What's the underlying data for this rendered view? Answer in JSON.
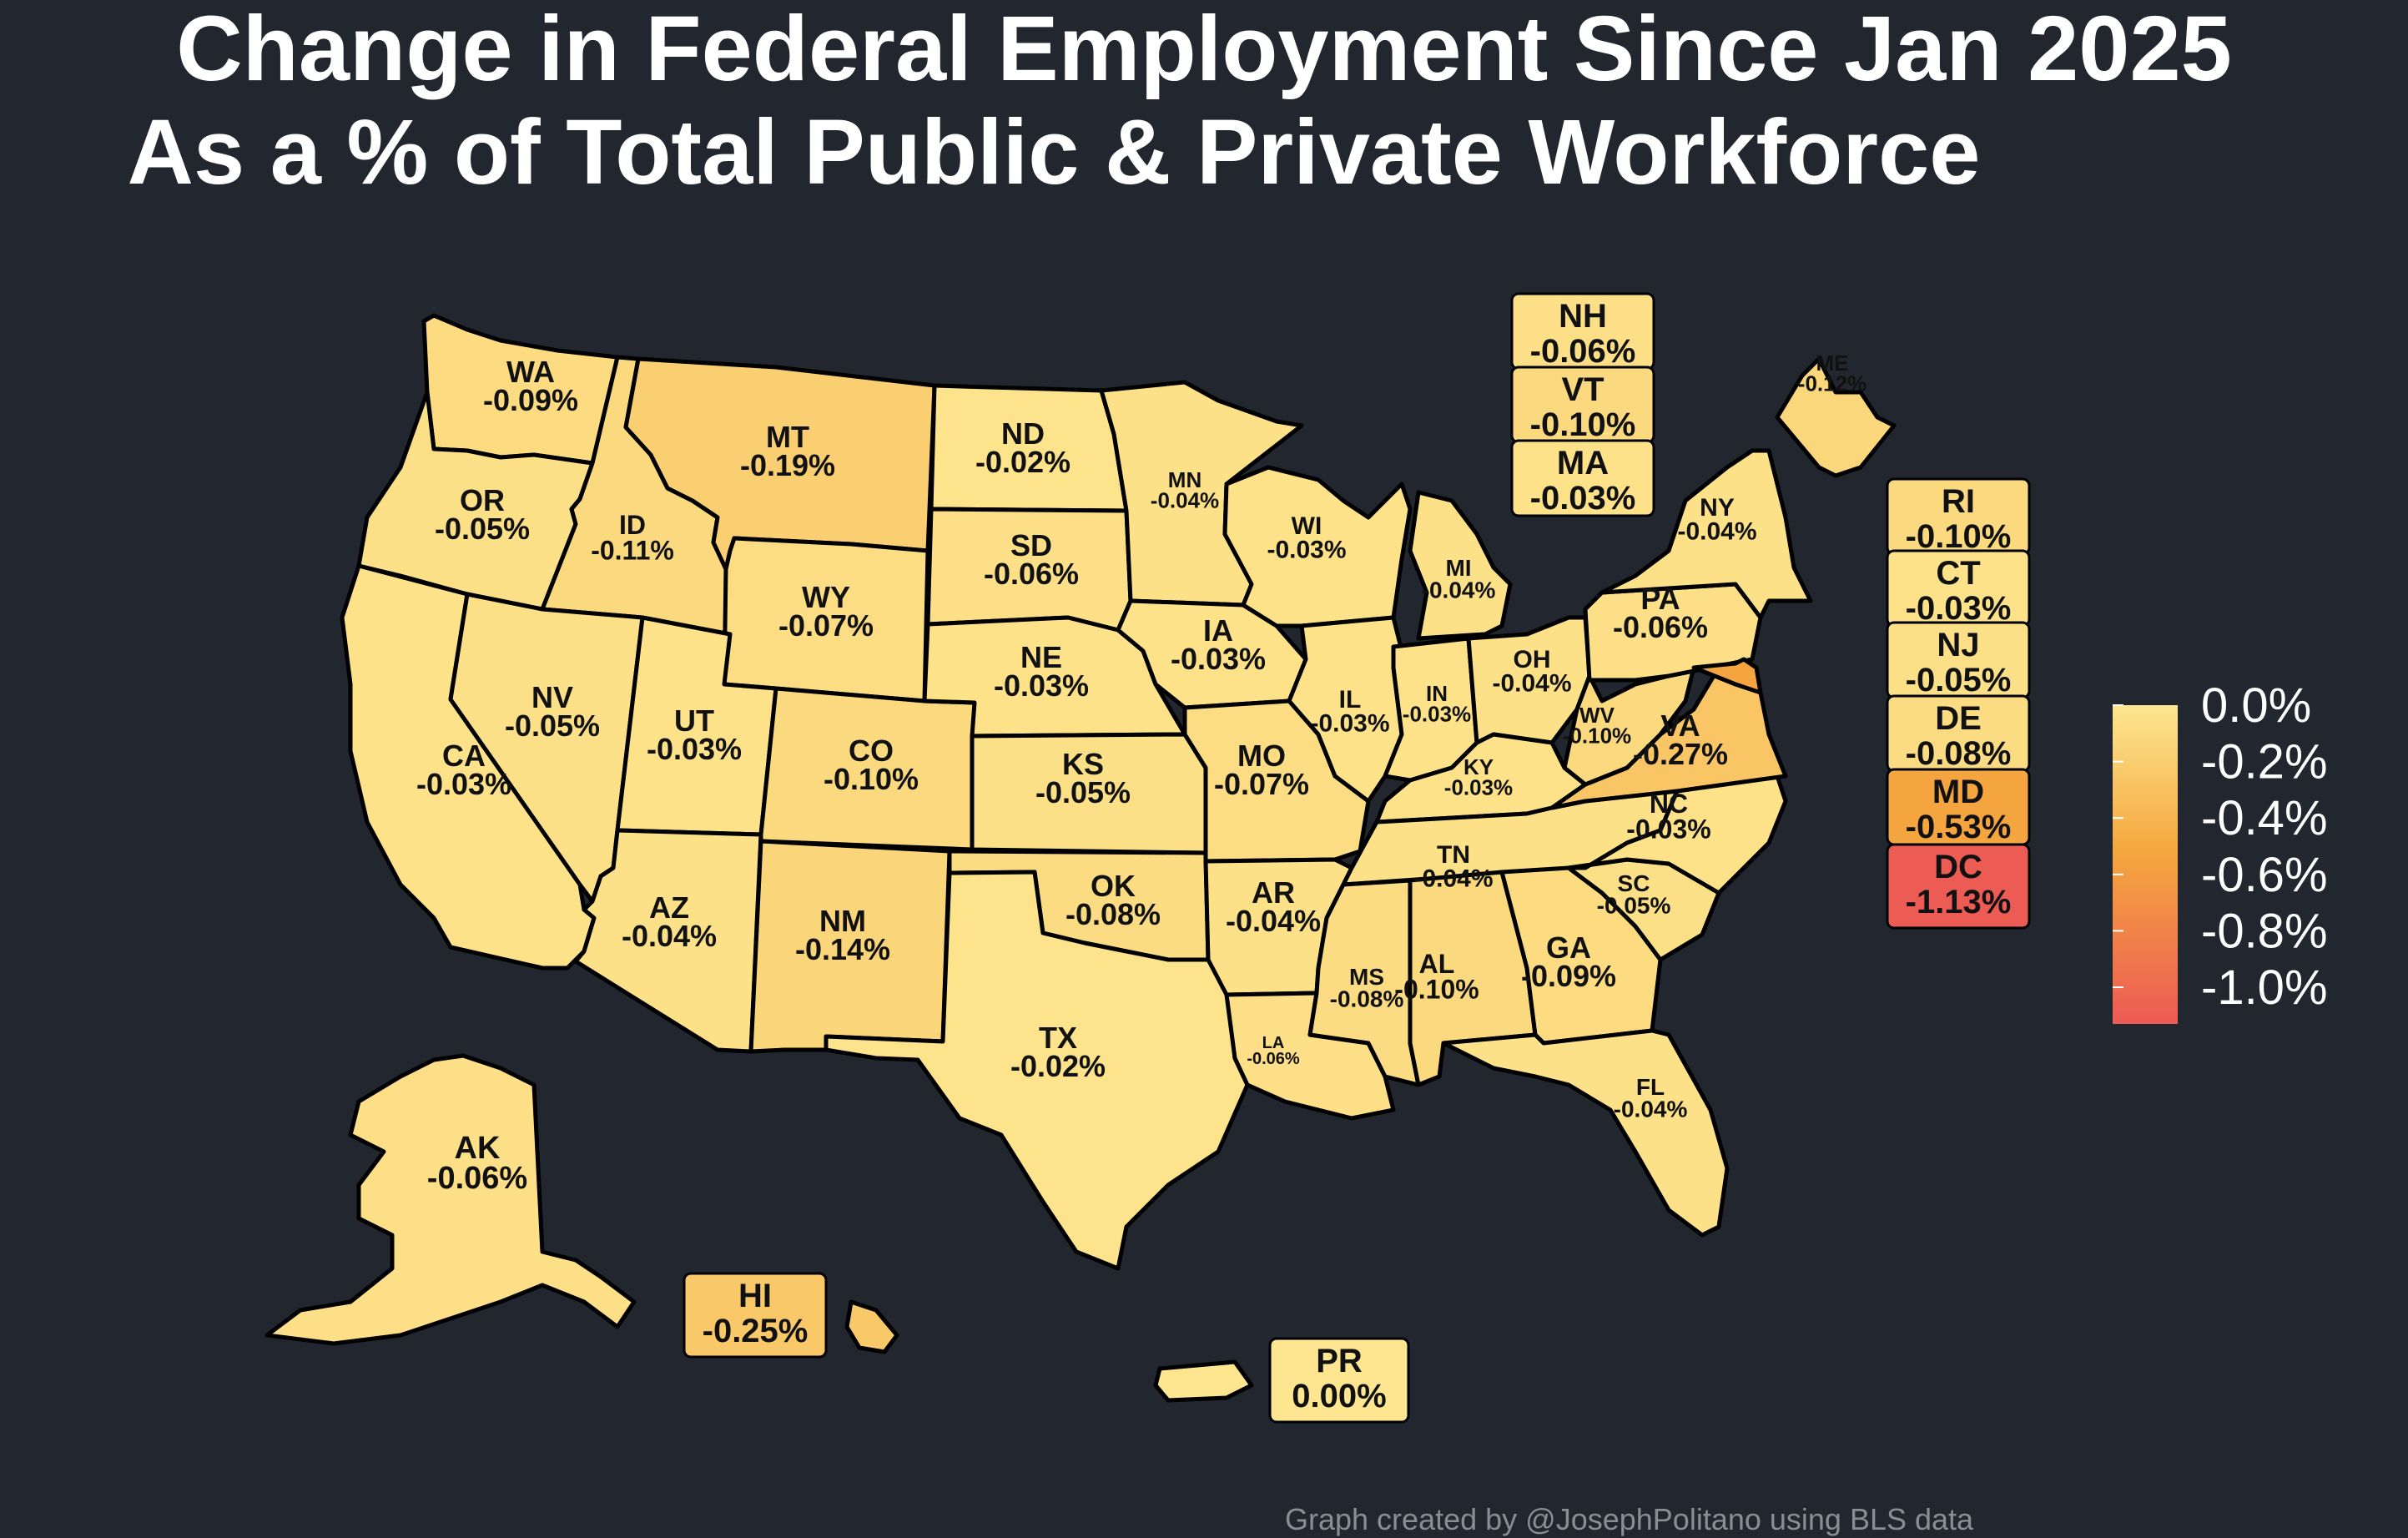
{
  "title": {
    "line1": "Change in Federal Employment Since Jan 2025",
    "line2": "As a % of Total Public & Private Workforce"
  },
  "credit": "Graph created by @JosephPolitano using BLS data",
  "colors": {
    "background": "#22262f",
    "scale_low": "#fde68f",
    "scale_mid": "#f5a83f",
    "scale_high": "#ec5b54"
  },
  "legend": {
    "labels": [
      "0.0%",
      "-0.2%",
      "-0.4%",
      "-0.6%",
      "-0.8%",
      "-1.0%"
    ],
    "values": [
      0.0,
      -0.2,
      -0.4,
      -0.6,
      -0.8,
      -1.0
    ]
  },
  "chart_data": {
    "type": "choropleth",
    "scale_range": [
      -1.13,
      0.0
    ],
    "states": [
      {
        "abbr": "WA",
        "label": "-0.09%",
        "value": -0.09
      },
      {
        "abbr": "OR",
        "label": "-0.05%",
        "value": -0.05
      },
      {
        "abbr": "CA",
        "label": "-0.03%",
        "value": -0.03
      },
      {
        "abbr": "ID",
        "label": "-0.11%",
        "value": -0.11
      },
      {
        "abbr": "NV",
        "label": "-0.05%",
        "value": -0.05
      },
      {
        "abbr": "MT",
        "label": "-0.19%",
        "value": -0.19
      },
      {
        "abbr": "WY",
        "label": "-0.07%",
        "value": -0.07
      },
      {
        "abbr": "UT",
        "label": "-0.03%",
        "value": -0.03
      },
      {
        "abbr": "AZ",
        "label": "-0.04%",
        "value": -0.04
      },
      {
        "abbr": "CO",
        "label": "-0.10%",
        "value": -0.1
      },
      {
        "abbr": "NM",
        "label": "-0.14%",
        "value": -0.14
      },
      {
        "abbr": "ND",
        "label": "-0.02%",
        "value": -0.02
      },
      {
        "abbr": "SD",
        "label": "-0.06%",
        "value": -0.06
      },
      {
        "abbr": "NE",
        "label": "-0.03%",
        "value": -0.03
      },
      {
        "abbr": "KS",
        "label": "-0.05%",
        "value": -0.05
      },
      {
        "abbr": "OK",
        "label": "-0.08%",
        "value": -0.08
      },
      {
        "abbr": "TX",
        "label": "-0.02%",
        "value": -0.02
      },
      {
        "abbr": "MN",
        "label": "-0.04%",
        "value": -0.04
      },
      {
        "abbr": "IA",
        "label": "-0.03%",
        "value": -0.03
      },
      {
        "abbr": "MO",
        "label": "-0.07%",
        "value": -0.07
      },
      {
        "abbr": "AR",
        "label": "-0.04%",
        "value": -0.04
      },
      {
        "abbr": "LA",
        "label": "-0.06%",
        "value": -0.06
      },
      {
        "abbr": "WI",
        "label": "-0.03%",
        "value": -0.03
      },
      {
        "abbr": "IL",
        "label": "-0.03%",
        "value": -0.03
      },
      {
        "abbr": "MI",
        "label": "-0.04%",
        "value": -0.04
      },
      {
        "abbr": "IN",
        "label": "-0.03%",
        "value": -0.03
      },
      {
        "abbr": "OH",
        "label": "-0.04%",
        "value": -0.04
      },
      {
        "abbr": "KY",
        "label": "-0.03%",
        "value": -0.03
      },
      {
        "abbr": "TN",
        "label": "-0.04%",
        "value": -0.04
      },
      {
        "abbr": "MS",
        "label": "-0.08%",
        "value": -0.08
      },
      {
        "abbr": "AL",
        "label": "-0.10%",
        "value": -0.1
      },
      {
        "abbr": "GA",
        "label": "-0.09%",
        "value": -0.09
      },
      {
        "abbr": "FL",
        "label": "-0.04%",
        "value": -0.04
      },
      {
        "abbr": "SC",
        "label": "-0.05%",
        "value": -0.05
      },
      {
        "abbr": "NC",
        "label": "-0.03%",
        "value": -0.03
      },
      {
        "abbr": "VA",
        "label": "-0.27%",
        "value": -0.27
      },
      {
        "abbr": "WV",
        "label": "-0.10%",
        "value": -0.1
      },
      {
        "abbr": "PA",
        "label": "-0.06%",
        "value": -0.06
      },
      {
        "abbr": "NY",
        "label": "-0.04%",
        "value": -0.04
      },
      {
        "abbr": "ME",
        "label": "-0.12%",
        "value": -0.12
      },
      {
        "abbr": "AK",
        "label": "-0.06%",
        "value": -0.06
      },
      {
        "abbr": "NH",
        "label": "-0.06%",
        "value": -0.06
      },
      {
        "abbr": "VT",
        "label": "-0.10%",
        "value": -0.1
      },
      {
        "abbr": "MA",
        "label": "-0.03%",
        "value": -0.03
      },
      {
        "abbr": "RI",
        "label": "-0.10%",
        "value": -0.1
      },
      {
        "abbr": "CT",
        "label": "-0.03%",
        "value": -0.03
      },
      {
        "abbr": "NJ",
        "label": "-0.05%",
        "value": -0.05
      },
      {
        "abbr": "DE",
        "label": "-0.08%",
        "value": -0.08
      },
      {
        "abbr": "MD",
        "label": "-0.53%",
        "value": -0.53
      },
      {
        "abbr": "DC",
        "label": "-1.13%",
        "value": -1.13
      },
      {
        "abbr": "HI",
        "label": "-0.25%",
        "value": -0.25
      },
      {
        "abbr": "PR",
        "label": "0.00%",
        "value": 0.0
      }
    ]
  }
}
